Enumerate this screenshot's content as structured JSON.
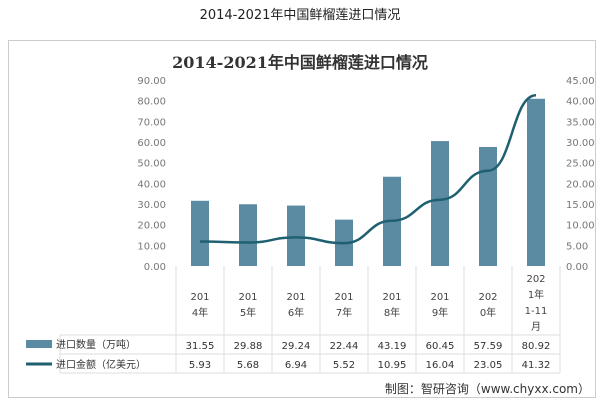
{
  "page_title": "2014-2021年中国鲜榴莲进口情况",
  "chart_data": {
    "type": "bar+line",
    "title": "2014-2021年中国鲜榴莲进口情况",
    "categories": [
      "2014年",
      "2015年",
      "2016年",
      "2017年",
      "2018年",
      "2019年",
      "2020年",
      "2021年1-11月"
    ],
    "category_lines": [
      [
        "201",
        "4年"
      ],
      [
        "201",
        "5年"
      ],
      [
        "201",
        "6年"
      ],
      [
        "201",
        "7年"
      ],
      [
        "201",
        "8年"
      ],
      [
        "201",
        "9年"
      ],
      [
        "202",
        "0年"
      ],
      [
        "202",
        "1年",
        "1-11",
        "月"
      ]
    ],
    "series": [
      {
        "name": "进口数量（万吨）",
        "type": "bar",
        "axis": "left",
        "color": "#5b8aa3",
        "values": [
          31.55,
          29.88,
          29.24,
          22.44,
          43.19,
          60.45,
          57.59,
          80.92
        ]
      },
      {
        "name": "进口金额（亿美元）",
        "type": "line",
        "axis": "right",
        "color": "#1f6070",
        "values": [
          5.93,
          5.68,
          6.94,
          5.52,
          10.95,
          16.04,
          23.05,
          41.32
        ]
      }
    ],
    "left_axis": {
      "ylim": [
        0,
        90
      ],
      "ticks": [
        "0.00",
        "10.00",
        "20.00",
        "30.00",
        "40.00",
        "50.00",
        "60.00",
        "70.00",
        "80.00",
        "90.00"
      ]
    },
    "right_axis": {
      "ylim": [
        0,
        45
      ],
      "ticks": [
        "0.00",
        "5.00",
        "10.00",
        "15.00",
        "20.00",
        "25.00",
        "30.00",
        "35.00",
        "40.00",
        "45.00"
      ]
    },
    "data_table": true
  },
  "source": "制图：智研咨询（www.chyxx.com）"
}
